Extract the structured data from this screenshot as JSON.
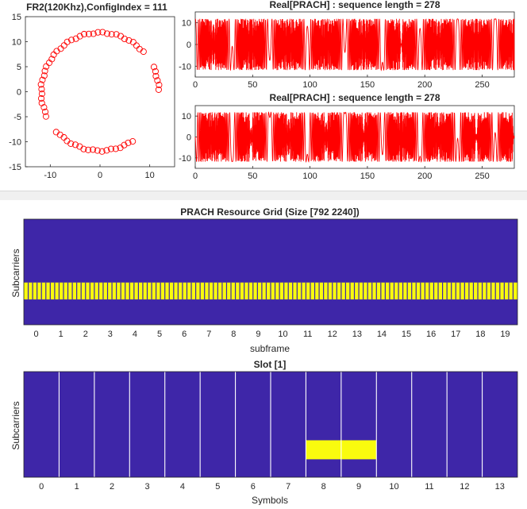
{
  "chart_data": [
    {
      "type": "scatter",
      "title": "FR2(120Khz),ConfigIndex = 111",
      "xlim": [
        -15,
        15
      ],
      "ylim": [
        -15,
        15
      ],
      "xticks": [
        "-10",
        "0",
        "10"
      ],
      "yticks": [
        "15",
        "10",
        "5",
        "0",
        "-5",
        "-10",
        "-15"
      ],
      "marker": "circle-open",
      "color": "#ff0000",
      "radius": 11.8,
      "num_points": 62,
      "description": "constellation points lie on a circle of radius ~11.8 with gaps near the top-right and bottom-left"
    },
    {
      "type": "line",
      "title": "Real[PRACH] : sequence length = 278",
      "xlim": [
        0,
        278
      ],
      "ylim": [
        -15,
        15
      ],
      "xticks": [
        "0",
        "50",
        "100",
        "150",
        "200",
        "250"
      ],
      "yticks": [
        "10",
        "0",
        "-10"
      ],
      "color": "#ff0000",
      "amplitude": 11.8,
      "burst_centers": [
        0,
        139,
        278
      ],
      "dense_centers": [
        69.5,
        208.5
      ]
    },
    {
      "type": "line",
      "title": "Real[PRACH] : sequence length = 278",
      "xlim": [
        0,
        278
      ],
      "ylim": [
        -15,
        15
      ],
      "xticks": [
        "0",
        "50",
        "100",
        "150",
        "200",
        "250"
      ],
      "yticks": [
        "10",
        "0",
        "-10"
      ],
      "color": "#ff0000",
      "amplitude": 11.8,
      "burst_centers": [
        0,
        139,
        278
      ],
      "dense_centers": [
        69.5,
        208.5
      ]
    },
    {
      "type": "heatmap",
      "title": "PRACH Resource Grid (Size [792 2240])",
      "xlabel": "subframe",
      "ylabel": "Subcarriers",
      "xticks": [
        "0",
        "1",
        "2",
        "3",
        "4",
        "5",
        "6",
        "7",
        "8",
        "9",
        "10",
        "11",
        "12",
        "13",
        "14",
        "15",
        "16",
        "17",
        "18",
        "19"
      ],
      "xlim": [
        -0.5,
        19.5
      ],
      "background_color": "#3e26a8",
      "highlight_color": "#f9fb0e",
      "highlight_band_y_fraction": [
        0.6,
        0.76
      ],
      "columns": 112,
      "gap_color": "#3e26a8"
    },
    {
      "type": "heatmap",
      "title": "Slot [1]",
      "xlabel": "Symbols",
      "ylabel": "Subcarriers",
      "xticks": [
        "0",
        "1",
        "2",
        "3",
        "4",
        "5",
        "6",
        "7",
        "8",
        "9",
        "10",
        "11",
        "12",
        "13"
      ],
      "xlim": [
        -0.5,
        13.5
      ],
      "background_color": "#3e26a8",
      "highlight_color": "#f9fb0e",
      "highlight_symbols": [
        7.5,
        9.5
      ],
      "highlight_band_y_fraction": [
        0.65,
        0.83
      ],
      "separator_color": "#ffffff"
    }
  ]
}
